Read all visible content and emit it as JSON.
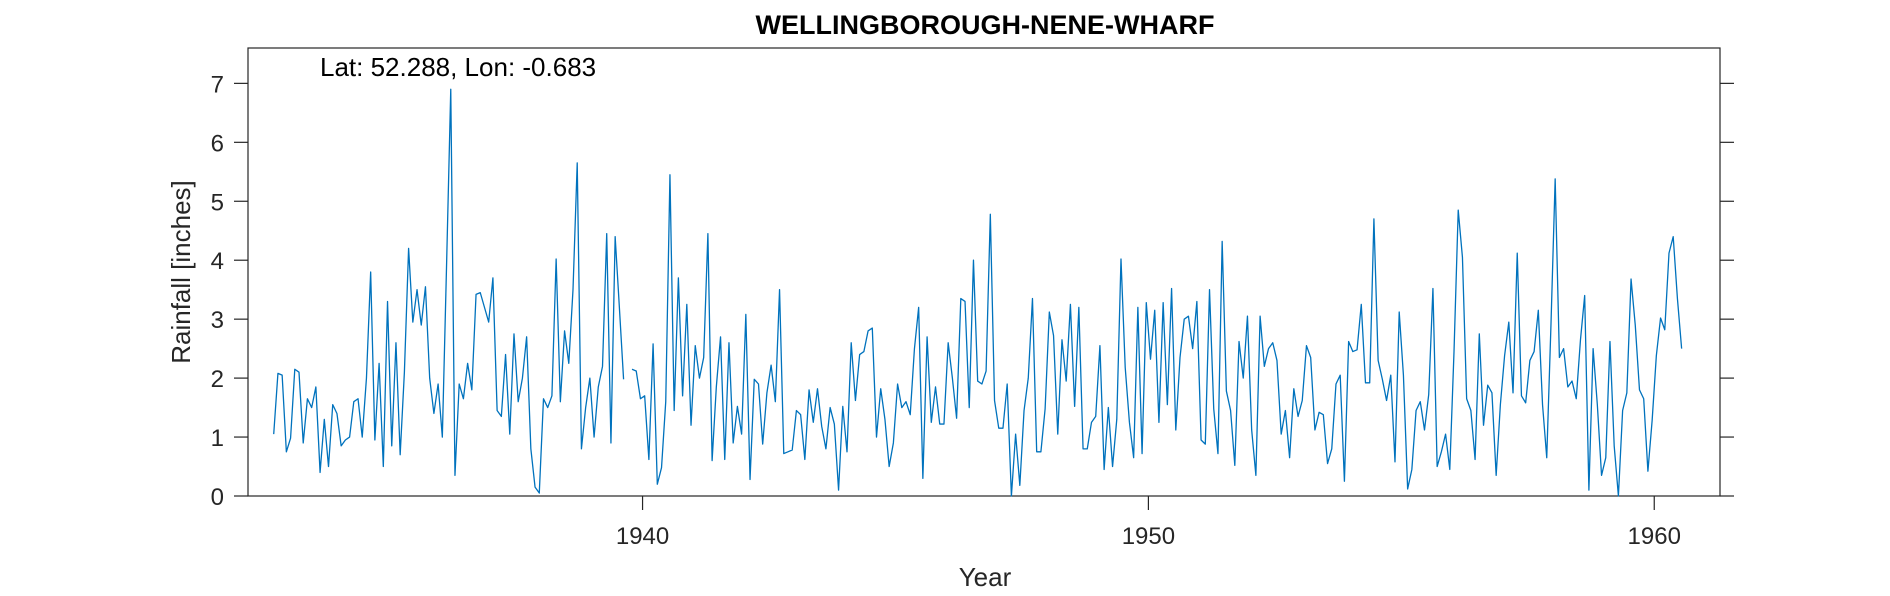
{
  "chart_data": {
    "type": "line",
    "title": "WELLINGBOROUGH-NENE-WHARF",
    "annotation": "Lat: 52.288, Lon: -0.683",
    "xlabel": "Year",
    "ylabel": "Rainfall [inches]",
    "xlim": [
      1932.2,
      1961.3
    ],
    "ylim": [
      0,
      7.6
    ],
    "x_ticks": [
      1940,
      1950,
      1960
    ],
    "x_tick_labels": [
      "1940",
      "1950",
      "1960"
    ],
    "y_ticks": [
      0,
      1,
      2,
      3,
      4,
      5,
      6,
      7
    ],
    "y_tick_labels": [
      "0",
      "1",
      "2",
      "3",
      "4",
      "5",
      "6",
      "7"
    ],
    "grid": false,
    "box": true,
    "series": [
      {
        "color": "#0072BD",
        "x_start": 1932.7083,
        "x_step": 0.083333,
        "segments": [
          {
            "start_index": 0,
            "values": [
              1.05,
              2.08,
              2.05,
              0.75,
              0.98,
              2.15,
              2.1,
              0.9,
              1.65,
              1.5,
              1.85,
              0.4,
              1.3,
              0.5,
              1.55,
              1.4,
              0.85,
              0.95,
              1.0,
              1.6,
              1.65,
              1.0,
              2.0,
              3.8,
              0.95,
              2.25,
              0.5,
              3.3,
              0.85,
              2.6,
              0.7,
              2.1,
              4.2,
              2.95,
              3.5,
              2.9,
              3.55,
              2.0,
              1.4,
              1.9,
              1.0,
              3.9,
              6.9,
              0.35,
              1.9,
              1.65,
              2.25,
              1.8,
              3.42,
              3.45,
              3.2,
              2.95,
              3.7,
              1.45,
              1.35,
              2.4,
              1.05,
              2.75,
              1.6,
              2.0,
              2.7,
              0.8,
              0.15,
              0.05,
              1.65,
              1.5,
              1.7,
              4.02,
              1.6,
              2.8,
              2.25,
              3.5,
              5.65,
              0.8,
              1.5,
              2.0,
              1.0,
              1.85,
              2.2,
              4.45,
              0.9,
              4.4,
              3.2,
              1.98
            ]
          },
          {
            "start_index": 85,
            "values": [
              2.15,
              2.12,
              1.65,
              1.7,
              0.62,
              2.58,
              0.2,
              0.48,
              1.6,
              5.45,
              1.45,
              3.7,
              1.7,
              3.25,
              1.2,
              2.55,
              2.0,
              2.35,
              4.45,
              0.6,
              1.85,
              2.7,
              0.62,
              2.6,
              0.9,
              1.52,
              1.05,
              3.08,
              0.28,
              1.98,
              1.9,
              0.88,
              1.75,
              2.22,
              1.6,
              3.5,
              0.72,
              0.75,
              0.78,
              1.45,
              1.38,
              0.62,
              1.8,
              1.25,
              1.82,
              1.18,
              0.8,
              1.5,
              1.22,
              0.1,
              1.52,
              0.75,
              2.6,
              1.62,
              2.4,
              2.45,
              2.8,
              2.85,
              1.0,
              1.82,
              1.3,
              0.5,
              0.9,
              1.9,
              1.5,
              1.6,
              1.38,
              2.5,
              3.2,
              0.3,
              2.7,
              1.25,
              1.85,
              1.22,
              1.22,
              2.6,
              2.0,
              1.32,
              3.35,
              3.3,
              1.5,
              4.0,
              1.95,
              1.9,
              2.12,
              4.78,
              1.62,
              1.15,
              1.15,
              1.9,
              0.0,
              1.05,
              0.18,
              1.45,
              2.0,
              3.35,
              0.75,
              0.75,
              1.48,
              3.12,
              2.72,
              1.05,
              2.65,
              1.95,
              3.25,
              1.52,
              3.2,
              0.8,
              0.8,
              1.25,
              1.35,
              2.55,
              0.45,
              1.5,
              0.5,
              1.3,
              4.02,
              2.18,
              1.25,
              0.65,
              3.2,
              0.72,
              3.28,
              2.32,
              3.15,
              1.25,
              3.28,
              1.55,
              3.52,
              1.12,
              2.35,
              3.0,
              3.05,
              2.5,
              3.3,
              0.95,
              0.88,
              3.5,
              1.48,
              0.72,
              4.32,
              1.78,
              1.45,
              0.52,
              2.62,
              2.0,
              3.05,
              1.12,
              0.35,
              3.05,
              2.2,
              2.5,
              2.6,
              2.3,
              1.05,
              1.45,
              0.65,
              1.82,
              1.35,
              1.62,
              2.55,
              2.35,
              1.12,
              1.42,
              1.38,
              0.55,
              0.8,
              1.9,
              2.05,
              0.25,
              2.62,
              2.45,
              2.48,
              3.25,
              1.92,
              1.92,
              4.7,
              2.3,
              1.98,
              1.62,
              2.05,
              0.58,
              3.12,
              2.05,
              0.12,
              0.45,
              1.45,
              1.6,
              1.12,
              1.72,
              3.52,
              0.5,
              0.75,
              1.05,
              0.45,
              2.45,
              4.85,
              4.05,
              1.65,
              1.45,
              0.62,
              2.75,
              1.2,
              1.88,
              1.75,
              0.35,
              1.55,
              2.38,
              2.95,
              1.75,
              4.12,
              1.7,
              1.58,
              2.3,
              2.45,
              3.15,
              1.55,
              0.65,
              2.9,
              5.38,
              2.35,
              2.5,
              1.85,
              1.95,
              1.65,
              2.65,
              3.4,
              0.1,
              2.5,
              1.55,
              0.35,
              0.65,
              2.62,
              0.85,
              0.0,
              1.45,
              1.75,
              3.68,
              2.9,
              1.8,
              1.65,
              0.42,
              1.28,
              2.38,
              3.02,
              2.82,
              4.12,
              4.4,
              3.35,
              2.5
            ]
          }
        ]
      }
    ]
  }
}
